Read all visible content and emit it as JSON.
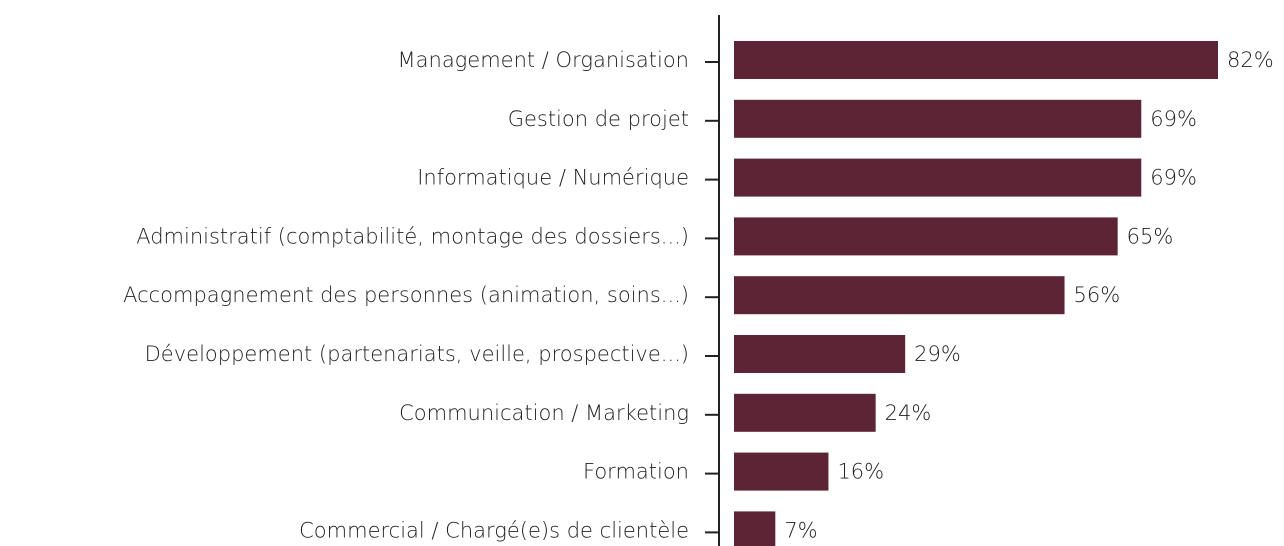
{
  "chart_data": {
    "type": "barh",
    "categories": [
      "Management / Organisation",
      "Gestion de projet",
      "Informatique / Numérique",
      "Administratif (comptabilité, montage des dossiers...)",
      "Accompagnement des personnes (animation, soins...)",
      "Développement (partenariats, veille, prospective...)",
      "Communication / Marketing",
      "Formation",
      "Commercial / Chargé(e)s de clientèle"
    ],
    "values": [
      82,
      69,
      69,
      65,
      56,
      29,
      24,
      16,
      7
    ],
    "value_labels": [
      "82%",
      "69%",
      "69%",
      "65%",
      "56%",
      "29%",
      "24%",
      "16%",
      "7%"
    ],
    "color": "#5c2434"
  }
}
